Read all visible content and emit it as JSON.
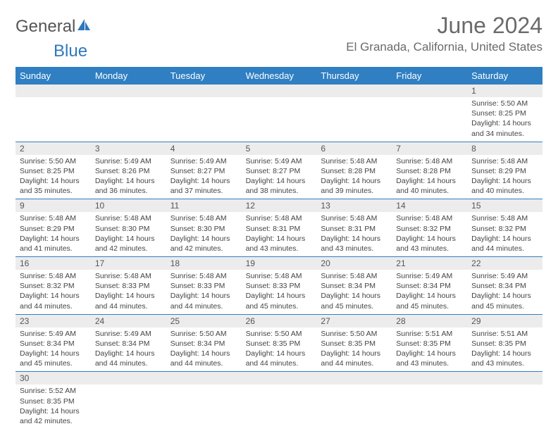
{
  "logo": {
    "part1": "General",
    "part2": "Blue"
  },
  "title": "June 2024",
  "location": "El Granada, California, United States",
  "colors": {
    "header_bg": "#2f7fc2",
    "header_text": "#ffffff",
    "daynum_bg": "#ececec",
    "border": "#2f7fc2",
    "text": "#444444",
    "title_text": "#6a6a6a"
  },
  "day_names": [
    "Sunday",
    "Monday",
    "Tuesday",
    "Wednesday",
    "Thursday",
    "Friday",
    "Saturday"
  ],
  "weeks": [
    [
      null,
      null,
      null,
      null,
      null,
      null,
      {
        "n": "1",
        "sr": "5:50 AM",
        "ss": "8:25 PM",
        "dl": "14 hours and 34 minutes."
      }
    ],
    [
      {
        "n": "2",
        "sr": "5:50 AM",
        "ss": "8:25 PM",
        "dl": "14 hours and 35 minutes."
      },
      {
        "n": "3",
        "sr": "5:49 AM",
        "ss": "8:26 PM",
        "dl": "14 hours and 36 minutes."
      },
      {
        "n": "4",
        "sr": "5:49 AM",
        "ss": "8:27 PM",
        "dl": "14 hours and 37 minutes."
      },
      {
        "n": "5",
        "sr": "5:49 AM",
        "ss": "8:27 PM",
        "dl": "14 hours and 38 minutes."
      },
      {
        "n": "6",
        "sr": "5:48 AM",
        "ss": "8:28 PM",
        "dl": "14 hours and 39 minutes."
      },
      {
        "n": "7",
        "sr": "5:48 AM",
        "ss": "8:28 PM",
        "dl": "14 hours and 40 minutes."
      },
      {
        "n": "8",
        "sr": "5:48 AM",
        "ss": "8:29 PM",
        "dl": "14 hours and 40 minutes."
      }
    ],
    [
      {
        "n": "9",
        "sr": "5:48 AM",
        "ss": "8:29 PM",
        "dl": "14 hours and 41 minutes."
      },
      {
        "n": "10",
        "sr": "5:48 AM",
        "ss": "8:30 PM",
        "dl": "14 hours and 42 minutes."
      },
      {
        "n": "11",
        "sr": "5:48 AM",
        "ss": "8:30 PM",
        "dl": "14 hours and 42 minutes."
      },
      {
        "n": "12",
        "sr": "5:48 AM",
        "ss": "8:31 PM",
        "dl": "14 hours and 43 minutes."
      },
      {
        "n": "13",
        "sr": "5:48 AM",
        "ss": "8:31 PM",
        "dl": "14 hours and 43 minutes."
      },
      {
        "n": "14",
        "sr": "5:48 AM",
        "ss": "8:32 PM",
        "dl": "14 hours and 43 minutes."
      },
      {
        "n": "15",
        "sr": "5:48 AM",
        "ss": "8:32 PM",
        "dl": "14 hours and 44 minutes."
      }
    ],
    [
      {
        "n": "16",
        "sr": "5:48 AM",
        "ss": "8:32 PM",
        "dl": "14 hours and 44 minutes."
      },
      {
        "n": "17",
        "sr": "5:48 AM",
        "ss": "8:33 PM",
        "dl": "14 hours and 44 minutes."
      },
      {
        "n": "18",
        "sr": "5:48 AM",
        "ss": "8:33 PM",
        "dl": "14 hours and 44 minutes."
      },
      {
        "n": "19",
        "sr": "5:48 AM",
        "ss": "8:33 PM",
        "dl": "14 hours and 45 minutes."
      },
      {
        "n": "20",
        "sr": "5:48 AM",
        "ss": "8:34 PM",
        "dl": "14 hours and 45 minutes."
      },
      {
        "n": "21",
        "sr": "5:49 AM",
        "ss": "8:34 PM",
        "dl": "14 hours and 45 minutes."
      },
      {
        "n": "22",
        "sr": "5:49 AM",
        "ss": "8:34 PM",
        "dl": "14 hours and 45 minutes."
      }
    ],
    [
      {
        "n": "23",
        "sr": "5:49 AM",
        "ss": "8:34 PM",
        "dl": "14 hours and 45 minutes."
      },
      {
        "n": "24",
        "sr": "5:49 AM",
        "ss": "8:34 PM",
        "dl": "14 hours and 44 minutes."
      },
      {
        "n": "25",
        "sr": "5:50 AM",
        "ss": "8:34 PM",
        "dl": "14 hours and 44 minutes."
      },
      {
        "n": "26",
        "sr": "5:50 AM",
        "ss": "8:35 PM",
        "dl": "14 hours and 44 minutes."
      },
      {
        "n": "27",
        "sr": "5:50 AM",
        "ss": "8:35 PM",
        "dl": "14 hours and 44 minutes."
      },
      {
        "n": "28",
        "sr": "5:51 AM",
        "ss": "8:35 PM",
        "dl": "14 hours and 43 minutes."
      },
      {
        "n": "29",
        "sr": "5:51 AM",
        "ss": "8:35 PM",
        "dl": "14 hours and 43 minutes."
      }
    ],
    [
      {
        "n": "30",
        "sr": "5:52 AM",
        "ss": "8:35 PM",
        "dl": "14 hours and 42 minutes."
      },
      null,
      null,
      null,
      null,
      null,
      null
    ]
  ],
  "labels": {
    "sunrise": "Sunrise:",
    "sunset": "Sunset:",
    "daylight": "Daylight:"
  }
}
